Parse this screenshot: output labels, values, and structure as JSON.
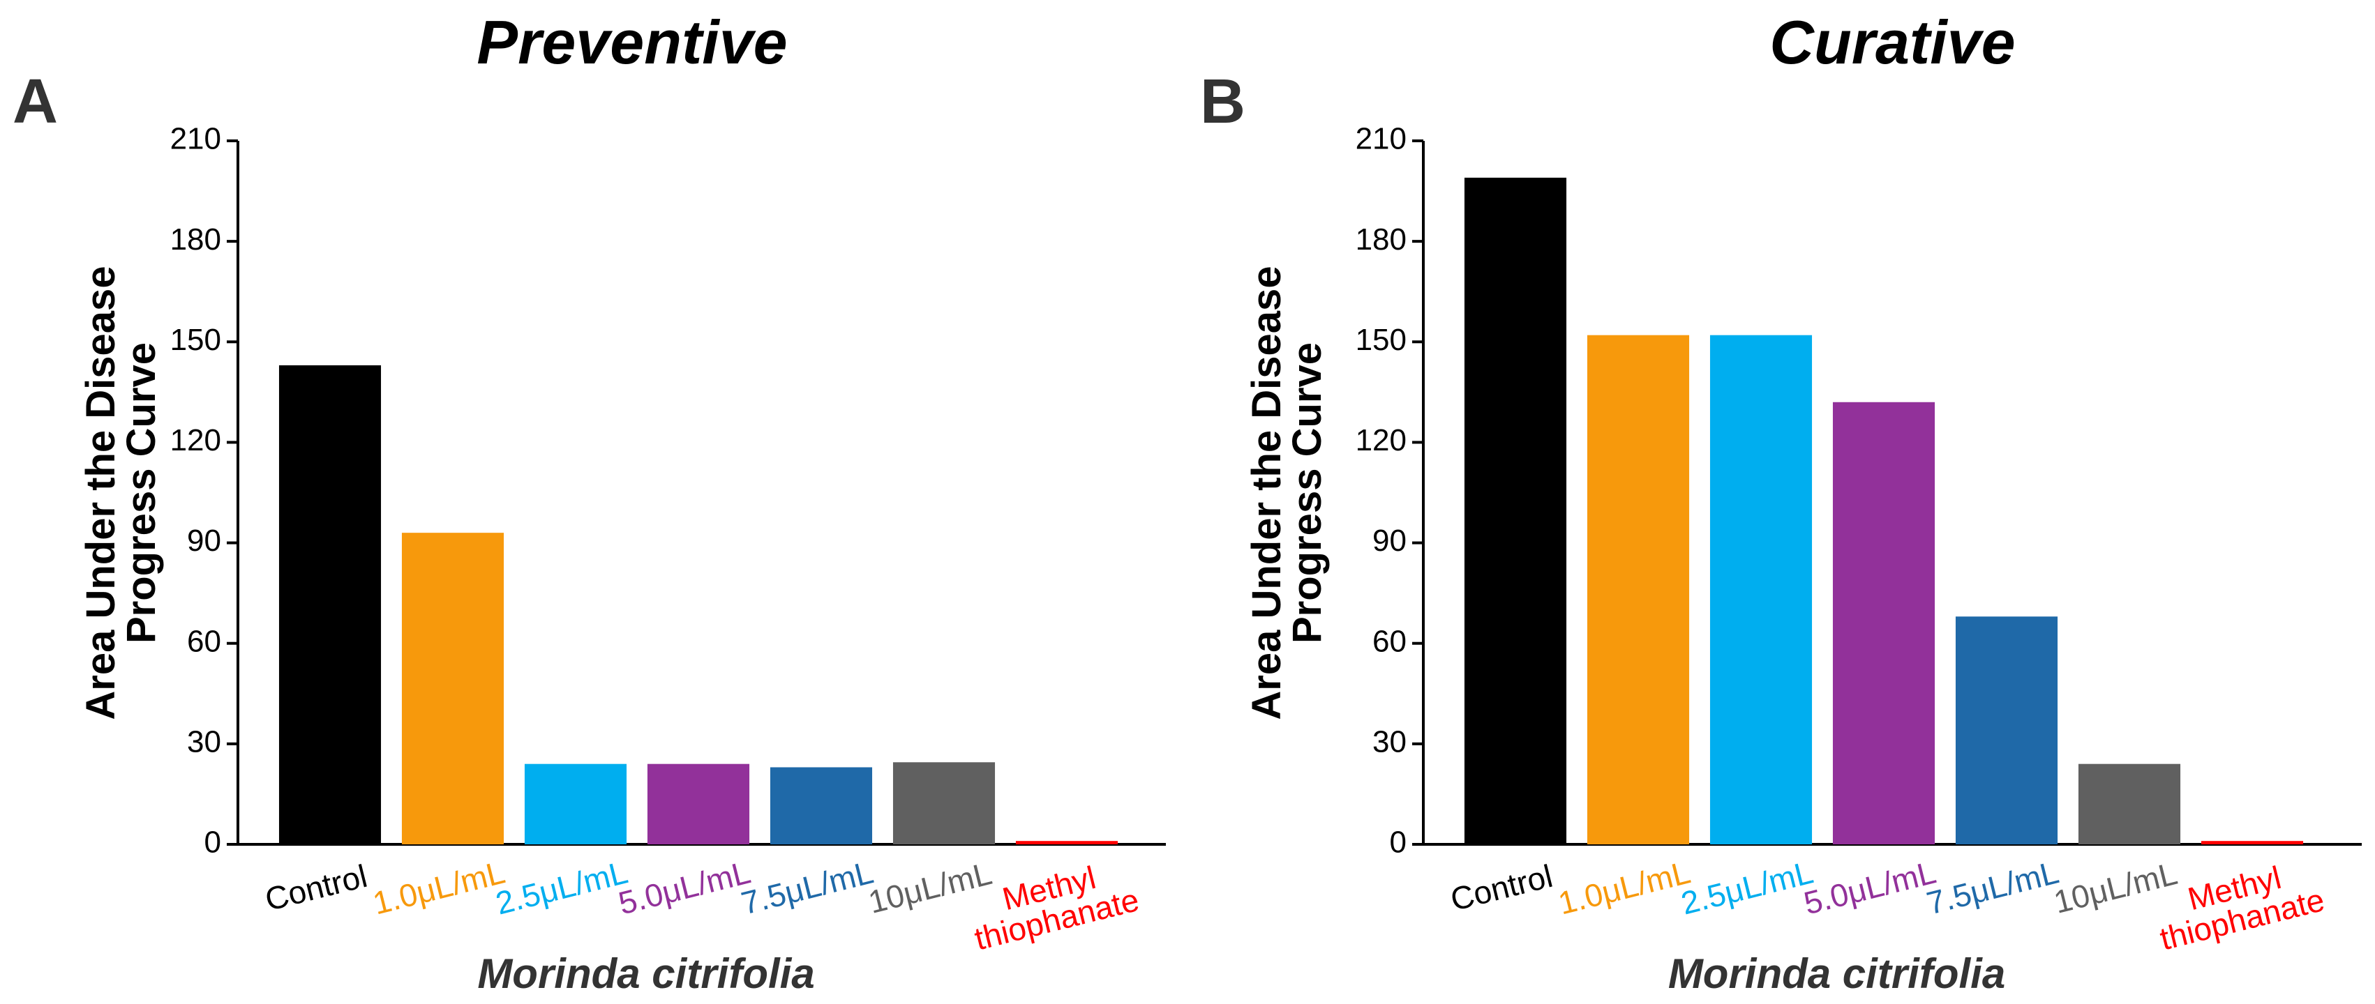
{
  "chart_data": [
    {
      "type": "bar",
      "panel_label": "A",
      "title": "Preventive",
      "ylabel": "Area Under the Disease Progress Curve",
      "xlabel": "Morinda citrifolia",
      "categories": [
        "Control",
        "1.0μL/mL",
        "2.5μL/mL",
        "5.0μL/mL",
        "7.5μL/mL",
        "10μL/mL",
        "Methyl thiophanate"
      ],
      "values": [
        143,
        93,
        24,
        24,
        23,
        24.5,
        1
      ],
      "colors": [
        "#000000",
        "#f7990c",
        "#00aeef",
        "#92319a",
        "#1f69a8",
        "#606060",
        "#ff0000"
      ],
      "ylim": [
        0,
        210
      ],
      "yticks": [
        0,
        30,
        60,
        90,
        120,
        150,
        180,
        210
      ]
    },
    {
      "type": "bar",
      "panel_label": "B",
      "title": "Curative",
      "ylabel": "Area Under the Disease Progress Curve",
      "xlabel": "Morinda citrifolia",
      "categories": [
        "Control",
        "1.0μL/mL",
        "2.5μL/mL",
        "5.0μL/mL",
        "7.5μL/mL",
        "10μL/mL",
        "Methyl thiophanate"
      ],
      "values": [
        199,
        152,
        152,
        132,
        68,
        24,
        1
      ],
      "colors": [
        "#000000",
        "#f7990c",
        "#00aeef",
        "#92319a",
        "#1f69a8",
        "#606060",
        "#ff0000"
      ],
      "ylim": [
        0,
        210
      ],
      "yticks": [
        0,
        30,
        60,
        90,
        120,
        150,
        180,
        210
      ]
    }
  ]
}
